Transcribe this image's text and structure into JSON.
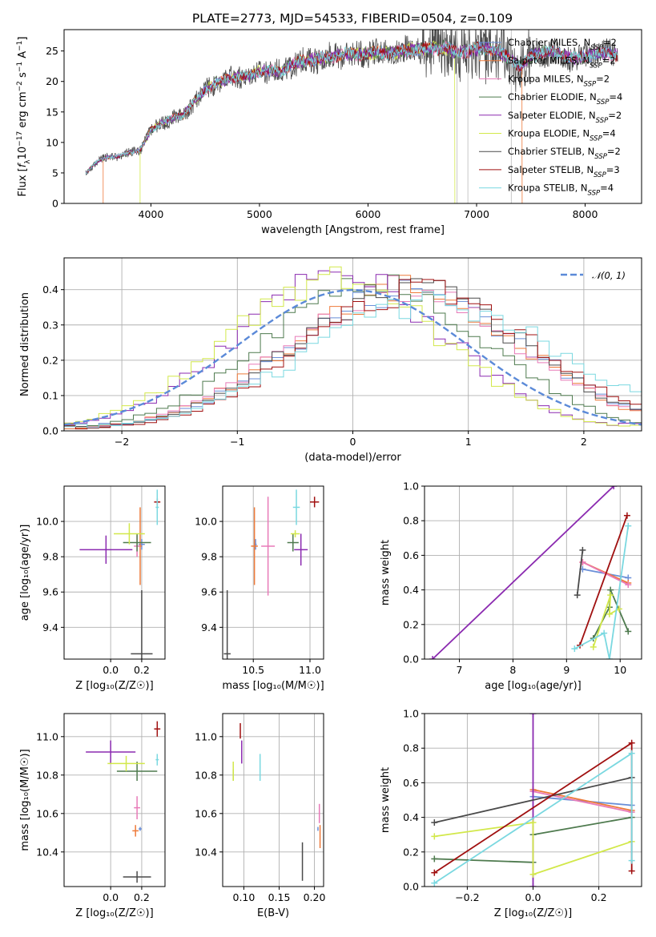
{
  "title": "PLATE=2773, MJD=54533, FIBERID=0504, z=0.109",
  "colors": {
    "chabrier_miles": "#6a8fd8",
    "salpeter_miles": "#ee7a3a",
    "kroupa_miles": "#e87ab8",
    "chabrier_elodie": "#4e7a4e",
    "salpeter_elodie": "#8b2ab0",
    "kroupa_elodie": "#d2e84a",
    "chabrier_stelib": "#4a4a4a",
    "salpeter_stelib": "#a01010",
    "kroupa_stelib": "#7ad8e0",
    "gauss": "#5b8ad8",
    "grid": "#b0b0b0"
  },
  "chart_data": [
    {
      "id": "spectrum",
      "type": "line",
      "xlabel": "wavelength [Angstrom, rest frame]",
      "ylabel": "Flux [f_λ 10^-17 erg cm^-2 s^-1 A^-1]",
      "xlim": [
        3200,
        8520
      ],
      "ylim": [
        0,
        28.5
      ],
      "xticks": [
        "4000",
        "5000",
        "6000",
        "7000",
        "8000"
      ],
      "yticks": [
        "0",
        "5",
        "10",
        "15",
        "20",
        "25"
      ],
      "grid": false,
      "legend_position": "upper right",
      "legend": [
        {
          "label": "Chabrier MILES, N_SSP=2"
        },
        {
          "label": "Salpeter MILES, N_SSP=2"
        },
        {
          "label": "Kroupa MILES, N_SSP=2"
        },
        {
          "label": "Chabrier ELODIE, N_SSP=4"
        },
        {
          "label": "Salpeter ELODIE, N_SSP=2"
        },
        {
          "label": "Kroupa ELODIE, N_SSP=4"
        },
        {
          "label": "Chabrier STELIB, N_SSP=2"
        },
        {
          "label": "Salpeter STELIB, N_SSP=3"
        },
        {
          "label": "Kroupa STELIB, N_SSP=4"
        }
      ],
      "continuum": [
        [
          3400,
          5.0
        ],
        [
          3500,
          6.8
        ],
        [
          3600,
          7.6
        ],
        [
          3700,
          7.7
        ],
        [
          3800,
          8.3
        ],
        [
          3900,
          8.8
        ],
        [
          4000,
          12.0
        ],
        [
          4100,
          13.2
        ],
        [
          4200,
          14.0
        ],
        [
          4300,
          14.5
        ],
        [
          4400,
          16.8
        ],
        [
          4500,
          18.6
        ],
        [
          4600,
          19.8
        ],
        [
          4700,
          20.3
        ],
        [
          4800,
          20.9
        ],
        [
          4900,
          20.8
        ],
        [
          5000,
          21.7
        ],
        [
          5100,
          21.8
        ],
        [
          5200,
          21.6
        ],
        [
          5300,
          22.8
        ],
        [
          5400,
          23.3
        ],
        [
          5500,
          23.6
        ],
        [
          5600,
          23.8
        ],
        [
          5700,
          24.2
        ],
        [
          5800,
          24.5
        ],
        [
          5900,
          24.4
        ],
        [
          6000,
          24.7
        ],
        [
          6100,
          24.8
        ],
        [
          6200,
          24.6
        ],
        [
          6300,
          24.9
        ],
        [
          6400,
          25.2
        ],
        [
          6500,
          25.3
        ],
        [
          6600,
          25.4
        ],
        [
          6700,
          25.6
        ],
        [
          6800,
          24.9
        ],
        [
          6900,
          24.8
        ],
        [
          7000,
          25.3
        ],
        [
          7100,
          25.4
        ],
        [
          7200,
          24.9
        ],
        [
          7300,
          23.9
        ],
        [
          7400,
          22.4
        ],
        [
          7500,
          24.1
        ],
        [
          7600,
          24.7
        ],
        [
          7700,
          24.8
        ],
        [
          7800,
          24.3
        ],
        [
          7900,
          23.8
        ],
        [
          8000,
          24.1
        ],
        [
          8100,
          24.5
        ],
        [
          8200,
          24.7
        ],
        [
          8300,
          24.3
        ]
      ],
      "model_cutoffs": [
        {
          "series": "Salpeter MILES",
          "wavelength_range": [
            3560,
            7420
          ]
        },
        {
          "series": "Kroupa ELODIE",
          "wavelength_range": [
            3900,
            6800
          ]
        }
      ]
    },
    {
      "id": "residuals",
      "type": "histogram",
      "xlabel": "(data-model)/error",
      "ylabel": "Normed distribution",
      "xlim": [
        -2.5,
        2.5
      ],
      "ylim": [
        0,
        0.49
      ],
      "xticks": [
        "−2",
        "−1",
        "0",
        "1",
        "2"
      ],
      "yticks": [
        "0.0",
        "0.1",
        "0.2",
        "0.3",
        "0.4"
      ],
      "grid": true,
      "legend": [
        {
          "label": "𝒩(0, 1)"
        }
      ],
      "legend_position": "upper right",
      "bin_width": 0.1,
      "gaussian": {
        "mean": 0,
        "sigma": 1
      },
      "series": [
        {
          "name": "Chabrier MILES",
          "mean": 0.5,
          "sigma": 1.0
        },
        {
          "name": "Salpeter MILES",
          "mean": 0.45,
          "sigma": 1.0
        },
        {
          "name": "Kroupa MILES",
          "mean": 0.45,
          "sigma": 1.0
        },
        {
          "name": "Chabrier ELODIE",
          "mean": 0.2,
          "sigma": 0.95
        },
        {
          "name": "Salpeter ELODIE",
          "mean": -0.1,
          "sigma": 0.92
        },
        {
          "name": "Kroupa ELODIE",
          "mean": -0.15,
          "sigma": 0.95
        },
        {
          "name": "Chabrier STELIB",
          "mean": 0.5,
          "sigma": 1.0
        },
        {
          "name": "Salpeter STELIB",
          "mean": 0.6,
          "sigma": 1.0
        },
        {
          "name": "Kroupa STELIB",
          "mean": 0.7,
          "sigma": 1.1
        }
      ]
    },
    {
      "id": "age_vs_Z",
      "type": "scatter",
      "xlabel": "Z [log10(Z/Z☉)]",
      "ylabel": "age  [log10(age/yr)]",
      "xlim": [
        -0.3,
        0.35
      ],
      "ylim": [
        9.22,
        10.2
      ],
      "xticks": [
        {
          "v": 0.0,
          "t": "0.0"
        },
        {
          "v": 0.2,
          "t": "0.2"
        }
      ],
      "yticks": [
        {
          "v": 9.4,
          "t": "9.4"
        },
        {
          "v": 9.6,
          "t": "9.6"
        },
        {
          "v": 9.8,
          "t": "9.8"
        },
        {
          "v": 10.0,
          "t": "10.0"
        }
      ],
      "grid": true,
      "points": [
        {
          "series": "Chabrier MILES",
          "x": 0.2,
          "y": 9.87,
          "xerr": 0.02,
          "yerr": 0.03
        },
        {
          "series": "Salpeter MILES",
          "x": 0.19,
          "y": 9.86,
          "xerr": 0.01,
          "yerr": 0.22
        },
        {
          "series": "Kroupa MILES",
          "x": 0.17,
          "y": 9.86,
          "xerr": 0.02,
          "yerr": 0.06
        },
        {
          "series": "Chabrier ELODIE",
          "x": 0.17,
          "y": 9.88,
          "xerr": 0.09,
          "yerr": 0.05
        },
        {
          "series": "Salpeter ELODIE",
          "x": -0.03,
          "y": 9.84,
          "xerr": 0.17,
          "yerr": 0.08
        },
        {
          "series": "Kroupa ELODIE",
          "x": 0.12,
          "y": 9.93,
          "xerr": 0.1,
          "yerr": 0.06
        },
        {
          "series": "Chabrier STELIB",
          "x": 0.2,
          "y": 9.25,
          "xerr": 0.07,
          "yerr": 0.36
        },
        {
          "series": "Salpeter STELIB",
          "x": 0.3,
          "y": 10.11,
          "xerr": 0.02,
          "yerr": 0.02
        },
        {
          "series": "Kroupa STELIB",
          "x": 0.3,
          "y": 10.08,
          "xerr": 0.01,
          "yerr": 0.1
        }
      ]
    },
    {
      "id": "age_vs_mass",
      "type": "scatter",
      "xlabel": "mass [log10(M/M☉)]",
      "ylabel": "",
      "xlim": [
        10.23,
        11.12
      ],
      "ylim": [
        9.22,
        10.2
      ],
      "xticks": [
        {
          "v": 10.5,
          "t": "10.5"
        },
        {
          "v": 11.0,
          "t": "11.0"
        }
      ],
      "yticks": [
        {
          "v": 9.4,
          "t": "9.4"
        },
        {
          "v": 9.6,
          "t": "9.6"
        },
        {
          "v": 9.8,
          "t": "9.8"
        },
        {
          "v": 10.0,
          "t": "10.0"
        }
      ],
      "grid": true,
      "points": [
        {
          "series": "Chabrier MILES",
          "x": 10.52,
          "y": 9.87,
          "xerr": 0.01,
          "yerr": 0.03
        },
        {
          "series": "Salpeter MILES",
          "x": 10.51,
          "y": 9.86,
          "xerr": 0.03,
          "yerr": 0.22
        },
        {
          "series": "Kroupa MILES",
          "x": 10.63,
          "y": 9.86,
          "xerr": 0.06,
          "yerr": 0.28
        },
        {
          "series": "Chabrier ELODIE",
          "x": 10.85,
          "y": 9.88,
          "xerr": 0.05,
          "yerr": 0.05
        },
        {
          "series": "Salpeter ELODIE",
          "x": 10.92,
          "y": 9.84,
          "xerr": 0.06,
          "yerr": 0.09
        },
        {
          "series": "Kroupa ELODIE",
          "x": 10.87,
          "y": 9.93,
          "xerr": 0.04,
          "yerr": 0.02
        },
        {
          "series": "Chabrier STELIB",
          "x": 10.27,
          "y": 9.25,
          "xerr": 0.03,
          "yerr": 0.36
        },
        {
          "series": "Salpeter STELIB",
          "x": 11.04,
          "y": 10.11,
          "xerr": 0.04,
          "yerr": 0.03
        },
        {
          "series": "Kroupa STELIB",
          "x": 10.88,
          "y": 10.08,
          "xerr": 0.03,
          "yerr": 0.1
        }
      ]
    },
    {
      "id": "weight_vs_age",
      "type": "line",
      "xlabel": "age  [log10(age/yr)]",
      "ylabel": "mass weight",
      "xlim": [
        6.35,
        10.4
      ],
      "ylim": [
        0,
        1.0
      ],
      "xticks": [
        {
          "v": 7,
          "t": "7"
        },
        {
          "v": 8,
          "t": "8"
        },
        {
          "v": 9,
          "t": "9"
        },
        {
          "v": 10,
          "t": "10"
        }
      ],
      "yticks": [
        {
          "v": 0,
          "t": "0.0"
        },
        {
          "v": 0.2,
          "t": "0.2"
        },
        {
          "v": 0.4,
          "t": "0.4"
        },
        {
          "v": 0.6,
          "t": "0.6"
        },
        {
          "v": 0.8,
          "t": "0.8"
        },
        {
          "v": 1.0,
          "t": "1.0"
        }
      ],
      "grid": true,
      "series": [
        {
          "name": "Chabrier MILES",
          "x": [
            9.3,
            10.15
          ],
          "y": [
            0.52,
            0.47
          ]
        },
        {
          "name": "Salpeter MILES",
          "x": [
            9.3,
            10.15
          ],
          "y": [
            0.56,
            0.44
          ]
        },
        {
          "name": "Kroupa MILES",
          "x": [
            9.3,
            10.15
          ],
          "y": [
            0.56,
            0.43
          ]
        },
        {
          "name": "Chabrier ELODIE",
          "x": [
            9.5,
            9.8,
            9.82,
            10.15
          ],
          "y": [
            0.12,
            0.3,
            0.4,
            0.16
          ]
        },
        {
          "name": "Salpeter ELODIE",
          "x": [
            6.5,
            9.88
          ],
          "y": [
            0.0,
            1.0
          ]
        },
        {
          "name": "Kroupa ELODIE",
          "x": [
            9.5,
            9.82,
            9.8,
            9.98
          ],
          "y": [
            0.07,
            0.37,
            0.26,
            0.29
          ]
        },
        {
          "name": "Chabrier STELIB",
          "x": [
            9.2,
            9.3
          ],
          "y": [
            0.37,
            0.63
          ]
        },
        {
          "name": "Salpeter STELIB",
          "x": [
            9.25,
            10.13
          ],
          "y": [
            0.08,
            0.83
          ]
        },
        {
          "name": "Kroupa STELIB",
          "x": [
            9.15,
            9.7,
            9.8,
            10.15
          ],
          "y": [
            0.06,
            0.15,
            0.0,
            0.77
          ]
        }
      ]
    },
    {
      "id": "mass_vs_Z",
      "type": "scatter",
      "xlabel": "Z [log10(Z/Z☉)]",
      "ylabel": "mass [log10(M/M☉)]",
      "xlim": [
        -0.3,
        0.35
      ],
      "ylim": [
        10.22,
        11.12
      ],
      "xticks": [
        {
          "v": 0.0,
          "t": "0.0"
        },
        {
          "v": 0.2,
          "t": "0.2"
        }
      ],
      "yticks": [
        {
          "v": 10.4,
          "t": "10.4"
        },
        {
          "v": 10.6,
          "t": "10.6"
        },
        {
          "v": 10.8,
          "t": "10.8"
        },
        {
          "v": 11.0,
          "t": "11.0"
        }
      ],
      "grid": true,
      "points": [
        {
          "series": "Chabrier MILES",
          "x": 0.19,
          "y": 10.52,
          "xerr": 0.01,
          "yerr": 0.01
        },
        {
          "series": "Salpeter MILES",
          "x": 0.16,
          "y": 10.51,
          "xerr": 0.02,
          "yerr": 0.03
        },
        {
          "series": "Kroupa MILES",
          "x": 0.17,
          "y": 10.63,
          "xerr": 0.02,
          "yerr": 0.06
        },
        {
          "series": "Chabrier ELODIE",
          "x": 0.17,
          "y": 10.82,
          "xerr": 0.13,
          "yerr": 0.05
        },
        {
          "series": "Salpeter ELODIE",
          "x": 0.0,
          "y": 10.92,
          "xerr": 0.16,
          "yerr": 0.06
        },
        {
          "series": "Kroupa ELODIE",
          "x": 0.1,
          "y": 10.86,
          "xerr": 0.12,
          "yerr": 0.04
        },
        {
          "series": "Chabrier STELIB",
          "x": 0.17,
          "y": 10.27,
          "xerr": 0.09,
          "yerr": 0.03
        },
        {
          "series": "Salpeter STELIB",
          "x": 0.3,
          "y": 11.04,
          "xerr": 0.02,
          "yerr": 0.04
        },
        {
          "series": "Kroupa STELIB",
          "x": 0.3,
          "y": 10.88,
          "xerr": 0.01,
          "yerr": 0.03
        }
      ]
    },
    {
      "id": "mass_vs_ebv",
      "type": "scatter",
      "xlabel": "E(B-V)",
      "ylabel": "",
      "xlim": [
        0.07,
        0.213
      ],
      "ylim": [
        10.22,
        11.12
      ],
      "xticks": [
        {
          "v": 0.1,
          "t": "0.10"
        },
        {
          "v": 0.15,
          "t": "0.15"
        },
        {
          "v": 0.2,
          "t": "0.20"
        }
      ],
      "yticks": [
        {
          "v": 10.4,
          "t": "10.4"
        },
        {
          "v": 10.6,
          "t": "10.6"
        },
        {
          "v": 10.8,
          "t": "10.8"
        },
        {
          "v": 11.0,
          "t": "11.0"
        }
      ],
      "grid": true,
      "points": [
        {
          "series": "Chabrier MILES",
          "x": 0.205,
          "y": 10.52,
          "xerr": 0.0005,
          "yerr": 0.01
        },
        {
          "series": "Salpeter MILES",
          "x": 0.208,
          "y": 10.48,
          "xerr": 0.0005,
          "yerr": 0.06
        },
        {
          "series": "Kroupa MILES",
          "x": 0.207,
          "y": 10.6,
          "xerr": 0.0005,
          "yerr": 0.05
        },
        {
          "series": "Chabrier ELODIE",
          "x": 0.085,
          "y": 10.8,
          "xerr": 0.0005,
          "yerr": 0.03
        },
        {
          "series": "Salpeter ELODIE",
          "x": 0.097,
          "y": 10.92,
          "xerr": 0.0005,
          "yerr": 0.06
        },
        {
          "series": "Kroupa ELODIE",
          "x": 0.085,
          "y": 10.82,
          "xerr": 0.0005,
          "yerr": 0.05
        },
        {
          "series": "Chabrier STELIB",
          "x": 0.183,
          "y": 10.35,
          "xerr": 0.0005,
          "yerr": 0.1
        },
        {
          "series": "Salpeter STELIB",
          "x": 0.095,
          "y": 11.03,
          "xerr": 0.0005,
          "yerr": 0.04
        },
        {
          "series": "Kroupa STELIB",
          "x": 0.123,
          "y": 10.84,
          "xerr": 0.0005,
          "yerr": 0.07
        }
      ]
    },
    {
      "id": "weight_vs_Z",
      "type": "line",
      "xlabel": "Z [log10(Z/Z☉)]",
      "ylabel": "mass weight",
      "xlim": [
        -0.33,
        0.33
      ],
      "ylim": [
        0,
        1.0
      ],
      "xticks": [
        {
          "v": -0.2,
          "t": "−0.2"
        },
        {
          "v": 0.0,
          "t": "0.0"
        },
        {
          "v": 0.2,
          "t": "0.2"
        }
      ],
      "yticks": [
        {
          "v": 0,
          "t": "0.0"
        },
        {
          "v": 0.2,
          "t": "0.2"
        },
        {
          "v": 0.4,
          "t": "0.4"
        },
        {
          "v": 0.6,
          "t": "0.6"
        },
        {
          "v": 0.8,
          "t": "0.8"
        },
        {
          "v": 1.0,
          "t": "1.0"
        }
      ],
      "grid": true,
      "series": [
        {
          "name": "Chabrier MILES",
          "x": [
            0.0,
            0.3
          ],
          "y": [
            0.52,
            0.47
          ]
        },
        {
          "name": "Salpeter MILES",
          "x": [
            0.0,
            0.3
          ],
          "y": [
            0.56,
            0.44
          ]
        },
        {
          "name": "Kroupa MILES",
          "x": [
            0.0,
            0.3
          ],
          "y": [
            0.55,
            0.43
          ]
        },
        {
          "name": "Chabrier ELODIE",
          "x": [
            -0.3,
            0.0,
            0.0,
            0.3
          ],
          "y": [
            0.16,
            0.14,
            0.3,
            0.4
          ]
        },
        {
          "name": "Salpeter ELODIE",
          "x": [
            0.0,
            0.0
          ],
          "y": [
            0.0,
            1.0
          ]
        },
        {
          "name": "Kroupa ELODIE",
          "x": [
            -0.3,
            0.0,
            0.0,
            0.3
          ],
          "y": [
            0.29,
            0.37,
            0.07,
            0.26
          ]
        },
        {
          "name": "Chabrier STELIB",
          "x": [
            -0.3,
            0.3
          ],
          "y": [
            0.37,
            0.63
          ]
        },
        {
          "name": "Salpeter STELIB",
          "x": [
            -0.3,
            0.3,
            0.3
          ],
          "y": [
            0.08,
            0.83,
            0.09
          ]
        },
        {
          "name": "Kroupa STELIB",
          "x": [
            -0.3,
            0.3,
            0.3
          ],
          "y": [
            0.02,
            0.77,
            0.15
          ]
        }
      ]
    }
  ]
}
